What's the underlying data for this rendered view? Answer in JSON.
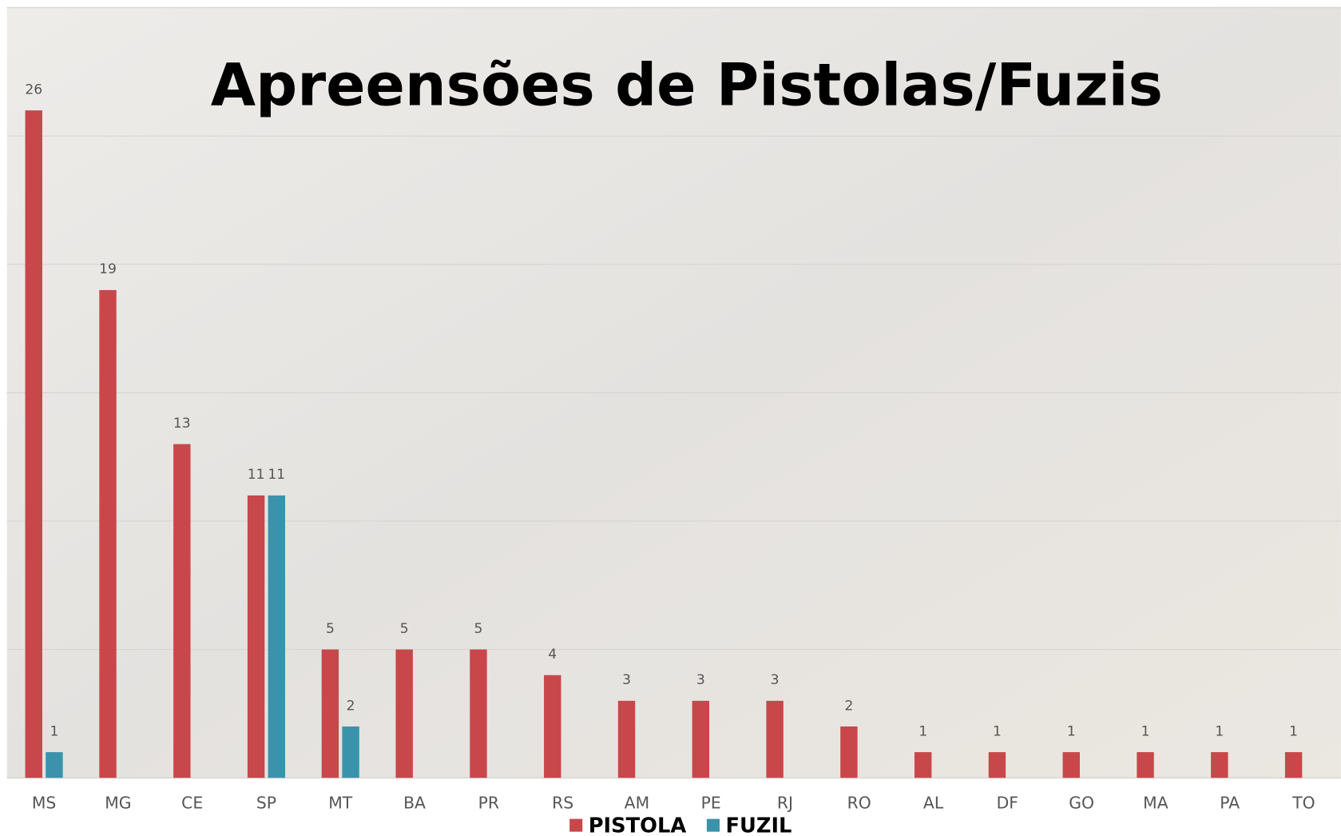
{
  "chart_data": {
    "type": "bar",
    "title": "Apreensões de Pistolas/Fuzis",
    "categories": [
      "MS",
      "MG",
      "CE",
      "SP",
      "MT",
      "BA",
      "PR",
      "RS",
      "AM",
      "PE",
      "RJ",
      "RO",
      "AL",
      "DF",
      "GO",
      "MA",
      "PA",
      "TO"
    ],
    "series": [
      {
        "name": "PISTOLA",
        "color": "#c8474a",
        "values": [
          26,
          19,
          13,
          11,
          5,
          5,
          5,
          4,
          3,
          3,
          3,
          2,
          1,
          1,
          1,
          1,
          1,
          1
        ]
      },
      {
        "name": "FUZIL",
        "color": "#3a93ab",
        "values": [
          1,
          null,
          null,
          11,
          2,
          null,
          null,
          null,
          null,
          null,
          null,
          null,
          null,
          null,
          null,
          null,
          null,
          null
        ]
      }
    ],
    "ylim": [
      0,
      30
    ],
    "yticks": [
      0,
      5,
      10,
      15,
      20,
      25,
      30
    ],
    "grid": true,
    "legend": "bottom"
  }
}
